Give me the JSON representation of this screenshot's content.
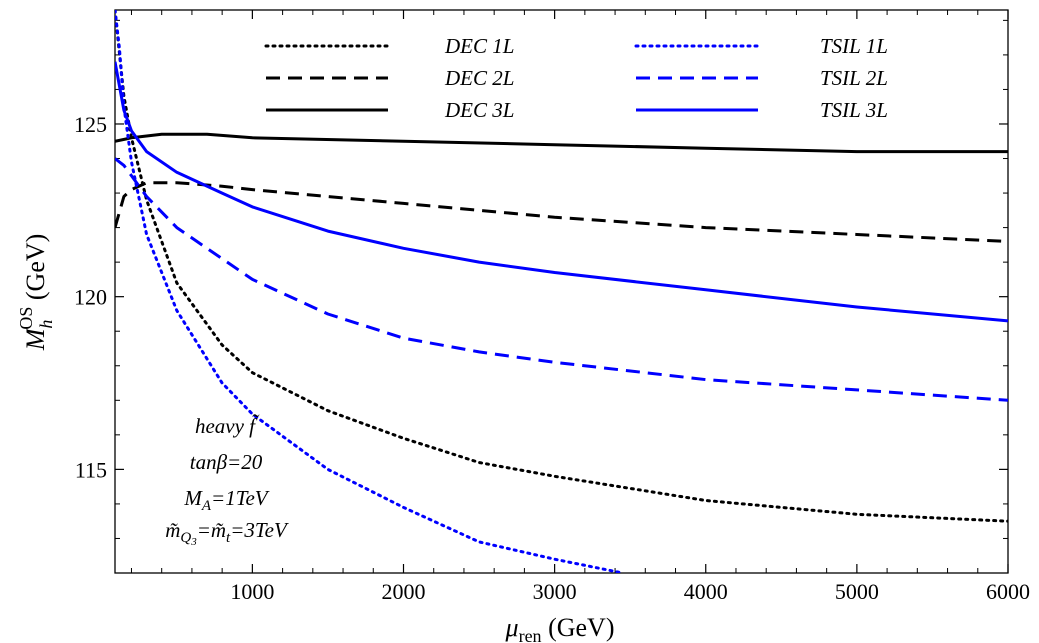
{
  "chart_data": {
    "type": "line",
    "xlabel": "μ_ren (GeV)",
    "xlabel_main": "μ",
    "xlabel_sub": "ren",
    "xlabel_unit": " (GeV)",
    "ylabel": "M_h^OS (GeV)",
    "ylabel_main": "M",
    "ylabel_sub": "h",
    "ylabel_sup": "OS",
    "ylabel_unit": " (GeV)",
    "xlim": [
      91,
      6000
    ],
    "ylim": [
      112,
      128.3
    ],
    "xticks": [
      1000,
      2000,
      3000,
      4000,
      5000,
      6000
    ],
    "xtick_labels": [
      "1000",
      "2000",
      "3000",
      "4000",
      "5000",
      "6000"
    ],
    "yticks": [
      115,
      120,
      125
    ],
    "ytick_labels": [
      "115",
      "120",
      "125"
    ],
    "legend_placement": "top",
    "grid": false,
    "annotations": {
      "line1": "heavy f̃",
      "line2": "tanβ=20",
      "line3": "M_A=1TeV",
      "line4": "m̃_Q3=m̃_t=3TeV"
    },
    "series": [
      {
        "name": "DEC 1L",
        "color": "#000000",
        "dash": "dotted",
        "x": [
          91,
          150,
          200,
          300,
          500,
          800,
          1000,
          1500,
          2000,
          2500,
          3000,
          4000,
          5000,
          6000
        ],
        "y": [
          128.3,
          125.8,
          124.6,
          122.8,
          120.4,
          118.6,
          117.8,
          116.7,
          115.9,
          115.2,
          114.8,
          114.1,
          113.7,
          113.5
        ]
      },
      {
        "name": "DEC 2L",
        "color": "#000000",
        "dash": "dashed",
        "x": [
          91,
          150,
          200,
          300,
          500,
          800,
          1000,
          1500,
          2000,
          2500,
          3000,
          4000,
          5000,
          6000
        ],
        "y": [
          122.0,
          122.9,
          123.1,
          123.3,
          123.3,
          123.2,
          123.1,
          122.9,
          122.7,
          122.5,
          122.3,
          122.0,
          121.8,
          121.6
        ]
      },
      {
        "name": "DEC 3L",
        "color": "#000000",
        "dash": "solid",
        "x": [
          91,
          200,
          400,
          700,
          1000,
          2000,
          3000,
          4000,
          5000,
          6000
        ],
        "y": [
          124.5,
          124.6,
          124.7,
          124.7,
          124.6,
          124.5,
          124.4,
          124.3,
          124.2,
          124.2
        ]
      },
      {
        "name": "TSIL 1L",
        "color": "#0000ff",
        "dash": "dotted",
        "x": [
          91,
          120,
          150,
          200,
          300,
          500,
          800,
          1000,
          1500,
          2000,
          2500,
          3000,
          3450
        ],
        "y": [
          128.3,
          127.2,
          125.5,
          123.9,
          121.8,
          119.6,
          117.5,
          116.6,
          115.0,
          113.9,
          112.9,
          112.4,
          112.0
        ]
      },
      {
        "name": "TSIL 2L",
        "color": "#0000ff",
        "dash": "dashed",
        "x": [
          91,
          150,
          200,
          300,
          500,
          800,
          1000,
          1500,
          2000,
          2500,
          3000,
          4000,
          5000,
          6000
        ],
        "y": [
          124.0,
          123.8,
          123.5,
          122.9,
          122.0,
          121.1,
          120.5,
          119.5,
          118.8,
          118.4,
          118.1,
          117.6,
          117.3,
          117.0
        ]
      },
      {
        "name": "TSIL 3L",
        "color": "#0000ff",
        "dash": "solid",
        "x": [
          91,
          150,
          200,
          300,
          500,
          800,
          1000,
          1500,
          2000,
          2500,
          3000,
          4000,
          5000,
          6000
        ],
        "y": [
          126.8,
          125.4,
          124.8,
          124.2,
          123.6,
          123.0,
          122.6,
          121.9,
          121.4,
          121.0,
          120.7,
          120.2,
          119.7,
          119.3
        ]
      }
    ]
  }
}
